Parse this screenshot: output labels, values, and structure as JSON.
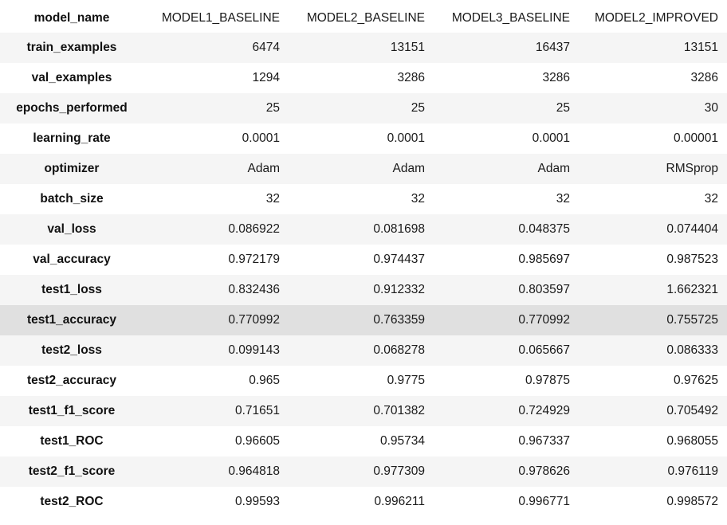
{
  "table": {
    "index_header": "model_name",
    "columns": [
      "MODEL1_BASELINE",
      "MODEL2_BASELINE",
      "MODEL3_BASELINE",
      "MODEL2_IMPROVED"
    ],
    "hover_row": 9,
    "rows": [
      {
        "label": "train_examples",
        "values": [
          "6474",
          "13151",
          "16437",
          "13151"
        ]
      },
      {
        "label": "val_examples",
        "values": [
          "1294",
          "3286",
          "3286",
          "3286"
        ]
      },
      {
        "label": "epochs_performed",
        "values": [
          "25",
          "25",
          "25",
          "30"
        ]
      },
      {
        "label": "learning_rate",
        "values": [
          "0.0001",
          "0.0001",
          "0.0001",
          "0.00001"
        ]
      },
      {
        "label": "optimizer",
        "values": [
          "Adam",
          "Adam",
          "Adam",
          "RMSprop"
        ]
      },
      {
        "label": "batch_size",
        "values": [
          "32",
          "32",
          "32",
          "32"
        ]
      },
      {
        "label": "val_loss",
        "values": [
          "0.086922",
          "0.081698",
          "0.048375",
          "0.074404"
        ]
      },
      {
        "label": "val_accuracy",
        "values": [
          "0.972179",
          "0.974437",
          "0.985697",
          "0.987523"
        ]
      },
      {
        "label": "test1_loss",
        "values": [
          "0.832436",
          "0.912332",
          "0.803597",
          "1.662321"
        ]
      },
      {
        "label": "test1_accuracy",
        "values": [
          "0.770992",
          "0.763359",
          "0.770992",
          "0.755725"
        ]
      },
      {
        "label": "test2_loss",
        "values": [
          "0.099143",
          "0.068278",
          "0.065667",
          "0.086333"
        ]
      },
      {
        "label": "test2_accuracy",
        "values": [
          "0.965",
          "0.9775",
          "0.97875",
          "0.97625"
        ]
      },
      {
        "label": "test1_f1_score",
        "values": [
          "0.71651",
          "0.701382",
          "0.724929",
          "0.705492"
        ]
      },
      {
        "label": "test1_ROC",
        "values": [
          "0.96605",
          "0.95734",
          "0.967337",
          "0.968055"
        ]
      },
      {
        "label": "test2_f1_score",
        "values": [
          "0.964818",
          "0.977309",
          "0.978626",
          "0.976119"
        ]
      },
      {
        "label": "test2_ROC",
        "values": [
          "0.99593",
          "0.996211",
          "0.996771",
          "0.998572"
        ]
      }
    ]
  }
}
